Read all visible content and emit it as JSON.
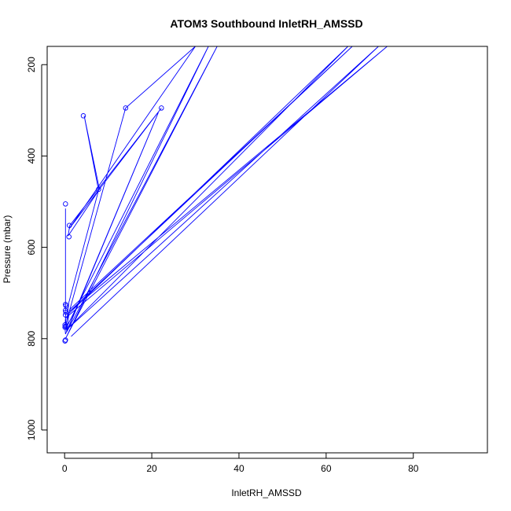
{
  "chart_data": {
    "type": "line",
    "title": "ATOM3 Southbound InletRH_AMSSD",
    "xlabel": "InletRH_AMSSD",
    "ylabel": "Pressure (mbar)",
    "xlim": [
      -4,
      97
    ],
    "ylim": [
      1050,
      160
    ],
    "y_reversed": true,
    "x_ticks": [
      "0",
      "20",
      "40",
      "60",
      "80"
    ],
    "y_ticks": [
      "200",
      "400",
      "600",
      "800",
      "1000"
    ],
    "line_color": "#0000ff",
    "series": [
      {
        "points": [
          [
            0.2,
            515
          ],
          [
            0.2,
            725
          ],
          [
            0.3,
            740
          ],
          [
            0.2,
            755
          ],
          [
            0.1,
            773
          ],
          [
            0.1,
            775
          ],
          [
            0.2,
            790
          ],
          [
            21.5,
            305
          ],
          [
            0.5,
            785
          ],
          [
            35,
            160
          ],
          [
            0.2,
            800
          ],
          [
            33,
            160
          ],
          [
            0.3,
            778
          ],
          [
            1.0,
            720
          ],
          [
            7.8,
            475
          ],
          [
            4.5,
            312
          ],
          [
            8.0,
            473
          ],
          [
            0.8,
            575
          ],
          [
            1.2,
            552
          ],
          [
            22.2,
            295
          ],
          [
            1.0,
            560
          ],
          [
            30,
            160
          ],
          [
            14,
            295
          ],
          [
            0.5,
            760
          ],
          [
            1.3,
            735
          ],
          [
            66,
            160
          ],
          [
            1.2,
            740
          ],
          [
            74,
            160
          ],
          [
            0.2,
            755
          ],
          [
            0.5,
            785
          ],
          [
            1.0,
            745
          ],
          [
            65,
            160
          ],
          [
            0.5,
            780
          ],
          [
            72,
            160
          ],
          [
            1.5,
            795
          ]
        ],
        "markers": [
          [
            0.2,
            505
          ],
          [
            4.3,
            312
          ],
          [
            14,
            295
          ],
          [
            22.2,
            295
          ],
          [
            7.8,
            473
          ],
          [
            1.1,
            552
          ],
          [
            1.0,
            577
          ],
          [
            0.2,
            725
          ],
          [
            0.3,
            728
          ],
          [
            0.2,
            738
          ],
          [
            0.3,
            742
          ],
          [
            0.2,
            748
          ],
          [
            0.1,
            770
          ],
          [
            0.2,
            773
          ],
          [
            0.1,
            775
          ],
          [
            0.2,
            803
          ],
          [
            0.1,
            805
          ]
        ]
      }
    ]
  }
}
